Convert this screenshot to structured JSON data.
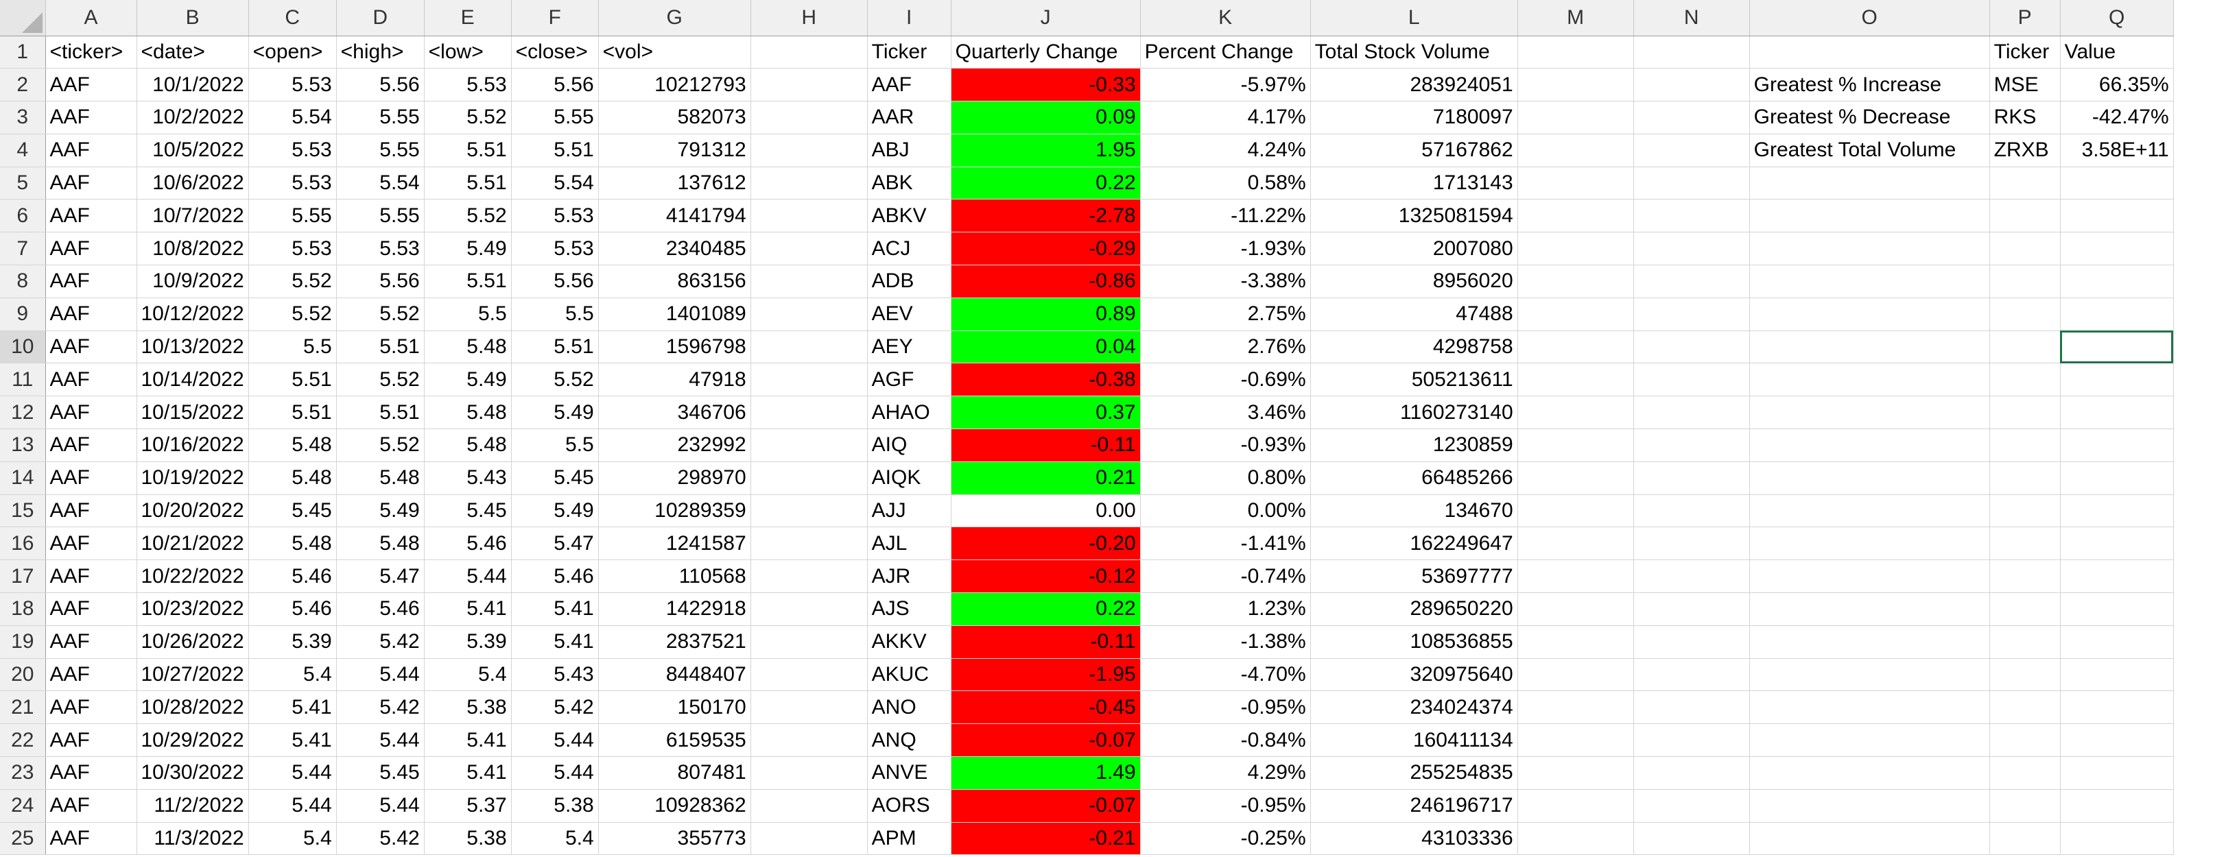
{
  "columns": [
    "A",
    "B",
    "C",
    "D",
    "E",
    "F",
    "G",
    "H",
    "I",
    "J",
    "K",
    "L",
    "M",
    "N",
    "O",
    "P",
    "Q"
  ],
  "colors": {
    "negative_fill": "#ff0000",
    "positive_fill": "#00ff00",
    "selection": "#217346",
    "grid": "#d4d4d4"
  },
  "selected_cell": "Q10",
  "rows": [
    {
      "num": "1",
      "ticker": "<ticker>",
      "date": "<date>",
      "open": "<open>",
      "high": "<high>",
      "low": "<low>",
      "close": "<close>",
      "vol": "<vol>",
      "t": "Ticker",
      "qc": "Quarterly Change",
      "pc": "Percent Change",
      "tv": "Total Stock Volume",
      "qc_state": "",
      "o": "",
      "p": "Ticker",
      "q": "Value"
    },
    {
      "num": "2",
      "ticker": "AAF",
      "date": "10/1/2022",
      "open": "5.53",
      "high": "5.56",
      "low": "5.53",
      "close": "5.56",
      "vol": "10212793",
      "t": "AAF",
      "qc": "-0.33",
      "pc": "-5.97%",
      "tv": "283924051",
      "qc_state": "neg",
      "o": "Greatest % Increase",
      "p": "MSE",
      "q": "66.35%"
    },
    {
      "num": "3",
      "ticker": "AAF",
      "date": "10/2/2022",
      "open": "5.54",
      "high": "5.55",
      "low": "5.52",
      "close": "5.55",
      "vol": "582073",
      "t": "AAR",
      "qc": "0.09",
      "pc": "4.17%",
      "tv": "7180097",
      "qc_state": "pos",
      "o": "Greatest % Decrease",
      "p": "RKS",
      "q": "-42.47%"
    },
    {
      "num": "4",
      "ticker": "AAF",
      "date": "10/5/2022",
      "open": "5.53",
      "high": "5.55",
      "low": "5.51",
      "close": "5.51",
      "vol": "791312",
      "t": "ABJ",
      "qc": "1.95",
      "pc": "4.24%",
      "tv": "57167862",
      "qc_state": "pos",
      "o": "Greatest Total Volume",
      "p": "ZRXB",
      "q": "3.58E+11"
    },
    {
      "num": "5",
      "ticker": "AAF",
      "date": "10/6/2022",
      "open": "5.53",
      "high": "5.54",
      "low": "5.51",
      "close": "5.54",
      "vol": "137612",
      "t": "ABK",
      "qc": "0.22",
      "pc": "0.58%",
      "tv": "1713143",
      "qc_state": "pos",
      "o": "",
      "p": "",
      "q": ""
    },
    {
      "num": "6",
      "ticker": "AAF",
      "date": "10/7/2022",
      "open": "5.55",
      "high": "5.55",
      "low": "5.52",
      "close": "5.53",
      "vol": "4141794",
      "t": "ABKV",
      "qc": "-2.78",
      "pc": "-11.22%",
      "tv": "1325081594",
      "qc_state": "neg",
      "o": "",
      "p": "",
      "q": ""
    },
    {
      "num": "7",
      "ticker": "AAF",
      "date": "10/8/2022",
      "open": "5.53",
      "high": "5.53",
      "low": "5.49",
      "close": "5.53",
      "vol": "2340485",
      "t": "ACJ",
      "qc": "-0.29",
      "pc": "-1.93%",
      "tv": "2007080",
      "qc_state": "neg",
      "o": "",
      "p": "",
      "q": ""
    },
    {
      "num": "8",
      "ticker": "AAF",
      "date": "10/9/2022",
      "open": "5.52",
      "high": "5.56",
      "low": "5.51",
      "close": "5.56",
      "vol": "863156",
      "t": "ADB",
      "qc": "-0.86",
      "pc": "-3.38%",
      "tv": "8956020",
      "qc_state": "neg",
      "o": "",
      "p": "",
      "q": ""
    },
    {
      "num": "9",
      "ticker": "AAF",
      "date": "10/12/2022",
      "open": "5.52",
      "high": "5.52",
      "low": "5.5",
      "close": "5.5",
      "vol": "1401089",
      "t": "AEV",
      "qc": "0.89",
      "pc": "2.75%",
      "tv": "47488",
      "qc_state": "pos",
      "o": "",
      "p": "",
      "q": ""
    },
    {
      "num": "10",
      "ticker": "AAF",
      "date": "10/13/2022",
      "open": "5.5",
      "high": "5.51",
      "low": "5.48",
      "close": "5.51",
      "vol": "1596798",
      "t": "AEY",
      "qc": "0.04",
      "pc": "2.76%",
      "tv": "4298758",
      "qc_state": "pos",
      "o": "",
      "p": "",
      "q": ""
    },
    {
      "num": "11",
      "ticker": "AAF",
      "date": "10/14/2022",
      "open": "5.51",
      "high": "5.52",
      "low": "5.49",
      "close": "5.52",
      "vol": "47918",
      "t": "AGF",
      "qc": "-0.38",
      "pc": "-0.69%",
      "tv": "505213611",
      "qc_state": "neg",
      "o": "",
      "p": "",
      "q": ""
    },
    {
      "num": "12",
      "ticker": "AAF",
      "date": "10/15/2022",
      "open": "5.51",
      "high": "5.51",
      "low": "5.48",
      "close": "5.49",
      "vol": "346706",
      "t": "AHAO",
      "qc": "0.37",
      "pc": "3.46%",
      "tv": "1160273140",
      "qc_state": "pos",
      "o": "",
      "p": "",
      "q": ""
    },
    {
      "num": "13",
      "ticker": "AAF",
      "date": "10/16/2022",
      "open": "5.48",
      "high": "5.52",
      "low": "5.48",
      "close": "5.5",
      "vol": "232992",
      "t": "AIQ",
      "qc": "-0.11",
      "pc": "-0.93%",
      "tv": "1230859",
      "qc_state": "neg",
      "o": "",
      "p": "",
      "q": ""
    },
    {
      "num": "14",
      "ticker": "AAF",
      "date": "10/19/2022",
      "open": "5.48",
      "high": "5.48",
      "low": "5.43",
      "close": "5.45",
      "vol": "298970",
      "t": "AIQK",
      "qc": "0.21",
      "pc": "0.80%",
      "tv": "66485266",
      "qc_state": "pos",
      "o": "",
      "p": "",
      "q": ""
    },
    {
      "num": "15",
      "ticker": "AAF",
      "date": "10/20/2022",
      "open": "5.45",
      "high": "5.49",
      "low": "5.45",
      "close": "5.49",
      "vol": "10289359",
      "t": "AJJ",
      "qc": "0.00",
      "pc": "0.00%",
      "tv": "134670",
      "qc_state": "",
      "o": "",
      "p": "",
      "q": ""
    },
    {
      "num": "16",
      "ticker": "AAF",
      "date": "10/21/2022",
      "open": "5.48",
      "high": "5.48",
      "low": "5.46",
      "close": "5.47",
      "vol": "1241587",
      "t": "AJL",
      "qc": "-0.20",
      "pc": "-1.41%",
      "tv": "162249647",
      "qc_state": "neg",
      "o": "",
      "p": "",
      "q": ""
    },
    {
      "num": "17",
      "ticker": "AAF",
      "date": "10/22/2022",
      "open": "5.46",
      "high": "5.47",
      "low": "5.44",
      "close": "5.46",
      "vol": "110568",
      "t": "AJR",
      "qc": "-0.12",
      "pc": "-0.74%",
      "tv": "53697777",
      "qc_state": "neg",
      "o": "",
      "p": "",
      "q": ""
    },
    {
      "num": "18",
      "ticker": "AAF",
      "date": "10/23/2022",
      "open": "5.46",
      "high": "5.46",
      "low": "5.41",
      "close": "5.41",
      "vol": "1422918",
      "t": "AJS",
      "qc": "0.22",
      "pc": "1.23%",
      "tv": "289650220",
      "qc_state": "pos",
      "o": "",
      "p": "",
      "q": ""
    },
    {
      "num": "19",
      "ticker": "AAF",
      "date": "10/26/2022",
      "open": "5.39",
      "high": "5.42",
      "low": "5.39",
      "close": "5.41",
      "vol": "2837521",
      "t": "AKKV",
      "qc": "-0.11",
      "pc": "-1.38%",
      "tv": "108536855",
      "qc_state": "neg",
      "o": "",
      "p": "",
      "q": ""
    },
    {
      "num": "20",
      "ticker": "AAF",
      "date": "10/27/2022",
      "open": "5.4",
      "high": "5.44",
      "low": "5.4",
      "close": "5.43",
      "vol": "8448407",
      "t": "AKUC",
      "qc": "-1.95",
      "pc": "-4.70%",
      "tv": "320975640",
      "qc_state": "neg",
      "o": "",
      "p": "",
      "q": ""
    },
    {
      "num": "21",
      "ticker": "AAF",
      "date": "10/28/2022",
      "open": "5.41",
      "high": "5.42",
      "low": "5.38",
      "close": "5.42",
      "vol": "150170",
      "t": "ANO",
      "qc": "-0.45",
      "pc": "-0.95%",
      "tv": "234024374",
      "qc_state": "neg",
      "o": "",
      "p": "",
      "q": ""
    },
    {
      "num": "22",
      "ticker": "AAF",
      "date": "10/29/2022",
      "open": "5.41",
      "high": "5.44",
      "low": "5.41",
      "close": "5.44",
      "vol": "6159535",
      "t": "ANQ",
      "qc": "-0.07",
      "pc": "-0.84%",
      "tv": "160411134",
      "qc_state": "neg",
      "o": "",
      "p": "",
      "q": ""
    },
    {
      "num": "23",
      "ticker": "AAF",
      "date": "10/30/2022",
      "open": "5.44",
      "high": "5.45",
      "low": "5.41",
      "close": "5.44",
      "vol": "807481",
      "t": "ANVE",
      "qc": "1.49",
      "pc": "4.29%",
      "tv": "255254835",
      "qc_state": "pos",
      "o": "",
      "p": "",
      "q": ""
    },
    {
      "num": "24",
      "ticker": "AAF",
      "date": "11/2/2022",
      "open": "5.44",
      "high": "5.44",
      "low": "5.37",
      "close": "5.38",
      "vol": "10928362",
      "t": "AORS",
      "qc": "-0.07",
      "pc": "-0.95%",
      "tv": "246196717",
      "qc_state": "neg",
      "o": "",
      "p": "",
      "q": ""
    },
    {
      "num": "25",
      "ticker": "AAF",
      "date": "11/3/2022",
      "open": "5.4",
      "high": "5.42",
      "low": "5.38",
      "close": "5.4",
      "vol": "355773",
      "t": "APM",
      "qc": "-0.21",
      "pc": "-0.25%",
      "tv": "43103336",
      "qc_state": "neg",
      "o": "",
      "p": "",
      "q": ""
    }
  ]
}
